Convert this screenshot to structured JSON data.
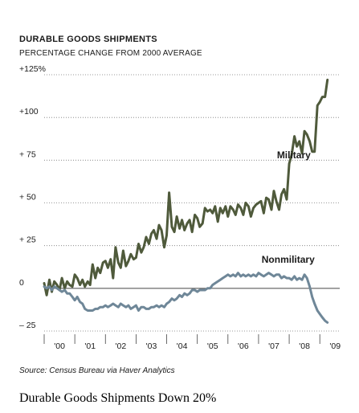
{
  "chart_data": {
    "type": "line",
    "title": "DURABLE GOODS SHIPMENTS",
    "subtitle": "PERCENTAGE CHANGE FROM 2000 AVERAGE",
    "source": "Source: Census Bureau via Haver Analytics",
    "xlabel": "",
    "ylabel": "",
    "xlim": [
      2000,
      2009.65
    ],
    "ylim": [
      -25,
      125
    ],
    "yticks": [
      {
        "value": 125,
        "label": "+125%"
      },
      {
        "value": 100,
        "label": "+100"
      },
      {
        "value": 75,
        "label": "+ 75"
      },
      {
        "value": 50,
        "label": "+ 50"
      },
      {
        "value": 25,
        "label": "+ 25"
      },
      {
        "value": 0,
        "label": "0"
      },
      {
        "value": -25,
        "label": "– 25"
      }
    ],
    "xticks": [
      {
        "value": 2000.5,
        "label": "'00"
      },
      {
        "value": 2001.5,
        "label": "'01"
      },
      {
        "value": 2002.5,
        "label": "'02"
      },
      {
        "value": 2003.5,
        "label": "'03"
      },
      {
        "value": 2004.5,
        "label": "'04"
      },
      {
        "value": 2005.5,
        "label": "'05"
      },
      {
        "value": 2006.5,
        "label": "'06"
      },
      {
        "value": 2007.5,
        "label": "'07"
      },
      {
        "value": 2008.5,
        "label": "'08"
      },
      {
        "value": 2009.5,
        "label": "'09"
      }
    ],
    "grid": true,
    "series": [
      {
        "name": "Military",
        "color": "#4f5a3b",
        "x": [
          2000.0,
          2000.08,
          2000.17,
          2000.25,
          2000.33,
          2000.42,
          2000.5,
          2000.58,
          2000.67,
          2000.75,
          2000.83,
          2000.92,
          2001.0,
          2001.08,
          2001.17,
          2001.25,
          2001.33,
          2001.42,
          2001.5,
          2001.58,
          2001.67,
          2001.75,
          2001.83,
          2001.92,
          2002.0,
          2002.08,
          2002.17,
          2002.25,
          2002.33,
          2002.42,
          2002.5,
          2002.58,
          2002.67,
          2002.75,
          2002.83,
          2002.92,
          2003.0,
          2003.08,
          2003.17,
          2003.25,
          2003.33,
          2003.42,
          2003.5,
          2003.58,
          2003.67,
          2003.75,
          2003.83,
          2003.92,
          2004.0,
          2004.08,
          2004.17,
          2004.25,
          2004.33,
          2004.42,
          2004.5,
          2004.58,
          2004.67,
          2004.75,
          2004.83,
          2004.92,
          2005.0,
          2005.08,
          2005.17,
          2005.25,
          2005.33,
          2005.42,
          2005.5,
          2005.58,
          2005.67,
          2005.75,
          2005.83,
          2005.92,
          2006.0,
          2006.08,
          2006.17,
          2006.25,
          2006.33,
          2006.42,
          2006.5,
          2006.58,
          2006.67,
          2006.75,
          2006.83,
          2006.92,
          2007.0,
          2007.08,
          2007.17,
          2007.25,
          2007.33,
          2007.42,
          2007.5,
          2007.58,
          2007.67,
          2007.75,
          2007.83,
          2007.92,
          2008.0,
          2008.08,
          2008.17,
          2008.25,
          2008.33,
          2008.42,
          2008.5,
          2008.58,
          2008.67,
          2008.75,
          2008.83,
          2008.92,
          2009.0,
          2009.08,
          2009.17,
          2009.25
        ],
        "values": [
          3,
          -4,
          5,
          -2,
          4,
          2,
          -1,
          6,
          0,
          4,
          2,
          1,
          8,
          6,
          2,
          5,
          1,
          4,
          2,
          14,
          6,
          12,
          9,
          15,
          16,
          12,
          17,
          6,
          24,
          15,
          12,
          22,
          13,
          16,
          20,
          17,
          18,
          26,
          21,
          24,
          30,
          26,
          32,
          34,
          29,
          37,
          34,
          24,
          31,
          56,
          36,
          33,
          42,
          35,
          40,
          34,
          38,
          40,
          33,
          43,
          41,
          36,
          38,
          47,
          45,
          46,
          44,
          48,
          39,
          47,
          44,
          48,
          42,
          48,
          46,
          43,
          49,
          47,
          43,
          50,
          48,
          42,
          47,
          49,
          50,
          51,
          44,
          53,
          52,
          46,
          57,
          51,
          46,
          55,
          58,
          52,
          73,
          78,
          89,
          83,
          86,
          79,
          92,
          90,
          86,
          80,
          80,
          107,
          109,
          112,
          112,
          122
        ]
      },
      {
        "name": "Nonmilitary",
        "color": "#6f8798",
        "x": [
          2000.0,
          2000.08,
          2000.17,
          2000.25,
          2000.33,
          2000.42,
          2000.5,
          2000.58,
          2000.67,
          2000.75,
          2000.83,
          2000.92,
          2001.0,
          2001.08,
          2001.17,
          2001.25,
          2001.33,
          2001.42,
          2001.5,
          2001.58,
          2001.67,
          2001.75,
          2001.83,
          2001.92,
          2002.0,
          2002.08,
          2002.17,
          2002.25,
          2002.33,
          2002.42,
          2002.5,
          2002.58,
          2002.67,
          2002.75,
          2002.83,
          2002.92,
          2003.0,
          2003.08,
          2003.17,
          2003.25,
          2003.33,
          2003.42,
          2003.5,
          2003.58,
          2003.67,
          2003.75,
          2003.83,
          2003.92,
          2004.0,
          2004.08,
          2004.17,
          2004.25,
          2004.33,
          2004.42,
          2004.5,
          2004.58,
          2004.67,
          2004.75,
          2004.83,
          2004.92,
          2005.0,
          2005.08,
          2005.17,
          2005.25,
          2005.33,
          2005.42,
          2005.5,
          2005.58,
          2005.67,
          2005.75,
          2005.83,
          2005.92,
          2006.0,
          2006.08,
          2006.17,
          2006.25,
          2006.33,
          2006.42,
          2006.5,
          2006.58,
          2006.67,
          2006.75,
          2006.83,
          2006.92,
          2007.0,
          2007.08,
          2007.17,
          2007.25,
          2007.33,
          2007.42,
          2007.5,
          2007.58,
          2007.67,
          2007.75,
          2007.83,
          2007.92,
          2008.0,
          2008.08,
          2008.17,
          2008.25,
          2008.33,
          2008.42,
          2008.5,
          2008.58,
          2008.67,
          2008.75,
          2008.83,
          2008.92,
          2009.0,
          2009.08,
          2009.17,
          2009.25
        ],
        "values": [
          1,
          0,
          1,
          -1,
          1,
          0,
          -1,
          -2,
          -1,
          -3,
          -3,
          -5,
          -7,
          -5,
          -8,
          -9,
          -12,
          -13,
          -13,
          -13,
          -12,
          -12,
          -11,
          -11,
          -10,
          -11,
          -10,
          -9,
          -10,
          -11,
          -9,
          -10,
          -11,
          -10,
          -12,
          -11,
          -10,
          -13,
          -11,
          -11,
          -12,
          -12,
          -11,
          -11,
          -10,
          -11,
          -10,
          -11,
          -9,
          -8,
          -6,
          -7,
          -6,
          -4,
          -5,
          -3,
          -4,
          -3,
          -1,
          -1,
          -2,
          -1,
          -1,
          -1,
          0,
          0,
          2,
          3,
          4,
          5,
          6,
          7,
          8,
          7,
          8,
          7,
          9,
          7,
          8,
          7,
          8,
          7,
          8,
          7,
          9,
          8,
          7,
          8,
          9,
          8,
          7,
          8,
          8,
          6,
          7,
          6,
          6,
          5,
          7,
          5,
          6,
          5,
          8,
          6,
          1,
          -5,
          -9,
          -13,
          -15,
          -17,
          -19,
          -20
        ]
      }
    ],
    "annotations": [
      {
        "text": "Military",
        "x": 2007.6,
        "y": 76
      },
      {
        "text": "Nonmilitary",
        "x": 2007.1,
        "y": 15
      }
    ]
  },
  "caption": "Durable Goods Shipments Down 20%"
}
